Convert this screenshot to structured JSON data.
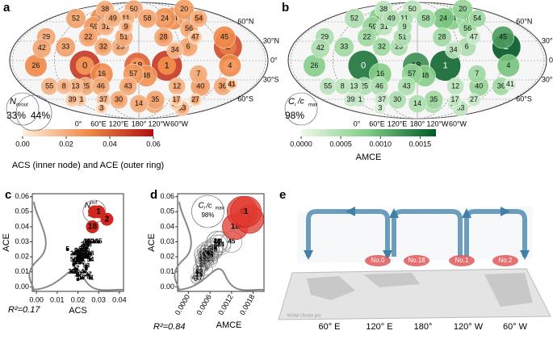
{
  "nodes": [
    {
      "id": 0,
      "lon": 103,
      "lat": -8,
      "acs": 0.028,
      "ace": 0.05,
      "amce": 0.0015
    },
    {
      "id": 1,
      "lon": -140,
      "lat": -8,
      "acs": 0.03,
      "ace": 0.05,
      "amce": 0.0016
    },
    {
      "id": 2,
      "lon": -50,
      "lat": 21,
      "acs": 0.034,
      "ace": 0.045,
      "amce": 0.0017
    },
    {
      "id": 3,
      "lon": 91,
      "lat": -74,
      "acs": 0.02,
      "ace": 0.005,
      "amce": 0.0002
    },
    {
      "id": 4,
      "lon": -50,
      "lat": -8,
      "acs": 0.025,
      "ace": 0.03,
      "amce": 0.0009
    },
    {
      "id": 5,
      "lon": -82,
      "lat": 65,
      "acs": 0.015,
      "ace": 0.025,
      "amce": 0.0006
    },
    {
      "id": 6,
      "lon": -108,
      "lat": 21,
      "acs": 0.022,
      "ace": 0.022,
      "amce": 0.0005
    },
    {
      "id": 7,
      "lon": -93,
      "lat": -21,
      "acs": 0.02,
      "ace": 0.02,
      "amce": 0.0006
    },
    {
      "id": 8,
      "lon": 62,
      "lat": -40,
      "acs": 0.018,
      "ace": 0.015,
      "amce": 0.0004
    },
    {
      "id": 9,
      "lon": 158,
      "lat": 52,
      "acs": 0.024,
      "ace": 0.012,
      "amce": 0.0005
    },
    {
      "id": 10,
      "lon": 105,
      "lat": 65,
      "acs": 0.026,
      "ace": 0.03,
      "amce": 0.0008
    },
    {
      "id": 11,
      "lon": 154,
      "lat": 65,
      "acs": 0.022,
      "ace": 0.018,
      "amce": 0.0005
    },
    {
      "id": 12,
      "lon": -120,
      "lat": -40,
      "acs": 0.02,
      "ace": 0.018,
      "amce": 0.0004
    },
    {
      "id": 13,
      "lon": 80,
      "lat": -40,
      "acs": 0.019,
      "ace": 0.016,
      "amce": 0.0004
    },
    {
      "id": 14,
      "lon": 180,
      "lat": -67,
      "acs": 0.021,
      "ace": 0.02,
      "amce": 0.0005
    },
    {
      "id": 15,
      "lon": -148,
      "lat": -67,
      "acs": 0.023,
      "ace": 0.022,
      "amce": 0.0005
    },
    {
      "id": 16,
      "lon": 126,
      "lat": -21,
      "acs": 0.025,
      "ace": 0.03,
      "amce": 0.0008
    },
    {
      "id": 17,
      "lon": -109,
      "lat": -61,
      "acs": 0.022,
      "ace": 0.006,
      "amce": 0.0003
    },
    {
      "id": 18,
      "lon": 178,
      "lat": -8,
      "acs": 0.027,
      "ace": 0.04,
      "amce": 0.0013
    },
    {
      "id": 19,
      "lon": -104,
      "lat": -67,
      "acs": 0.02,
      "ace": 0.008,
      "amce": 0.0003
    },
    {
      "id": 20,
      "lon": -54,
      "lat": 79,
      "acs": 0.022,
      "ace": 0.025,
      "amce": 0.0007
    },
    {
      "id": 21,
      "lon": 68,
      "lat": -61,
      "acs": 0.019,
      "ace": 0.01,
      "amce": 0.0003
    },
    {
      "id": 22,
      "lon": 102,
      "lat": 36,
      "acs": 0.024,
      "ace": 0.022,
      "amce": 0.0006
    },
    {
      "id": 23,
      "lon": 153,
      "lat": 21,
      "acs": 0.021,
      "ace": 0.02,
      "amce": 0.0005
    },
    {
      "id": 24,
      "lon": -128,
      "lat": 65,
      "acs": 0.023,
      "ace": 0.028,
      "amce": 0.0009
    },
    {
      "id": 25,
      "lon": 96,
      "lat": -40,
      "acs": 0.022,
      "ace": 0.02,
      "amce": 0.0005
    },
    {
      "id": 26,
      "lon": 33,
      "lat": -8,
      "acs": 0.028,
      "ace": 0.03,
      "amce": 0.0008
    },
    {
      "id": 27,
      "lon": -73,
      "lat": -61,
      "acs": 0.025,
      "ace": 0.008,
      "amce": 0.0003
    },
    {
      "id": 28,
      "lon": -142,
      "lat": 36,
      "acs": 0.026,
      "ace": 0.022,
      "amce": 0.0006
    },
    {
      "id": 29,
      "lon": 37,
      "lat": 36,
      "acs": 0.018,
      "ace": 0.022,
      "amce": 0.0005
    },
    {
      "id": 30,
      "lon": 142,
      "lat": -61,
      "acs": 0.024,
      "ace": 0.02,
      "amce": 0.0005
    },
    {
      "id": 31,
      "lon": 123,
      "lat": 52,
      "acs": 0.02,
      "ace": 0.018,
      "amce": 0.0004
    },
    {
      "id": 32,
      "lon": 128,
      "lat": 21,
      "acs": 0.025,
      "ace": 0.02,
      "amce": 0.0006
    },
    {
      "id": 33,
      "lon": 73,
      "lat": 21,
      "acs": 0.02,
      "ace": 0.024,
      "amce": 0.0006
    },
    {
      "id": 34,
      "lon": -128,
      "lat": 16,
      "acs": 0.021,
      "ace": 0.016,
      "amce": 0.0004
    },
    {
      "id": 35,
      "lon": -149,
      "lat": -61,
      "acs": 0.022,
      "ace": 0.022,
      "amce": 0.0006
    },
    {
      "id": 36,
      "lon": -48,
      "lat": -40,
      "acs": 0.023,
      "ace": 0.02,
      "amce": 0.0006
    },
    {
      "id": 37,
      "lon": 113,
      "lat": -61,
      "acs": 0.019,
      "ace": 0.012,
      "amce": 0.0003
    },
    {
      "id": 38,
      "lon": 86,
      "lat": 79,
      "acs": 0.021,
      "ace": 0.02,
      "amce": 0.0004
    },
    {
      "id": 39,
      "lon": 54,
      "lat": -61,
      "acs": 0.017,
      "ace": 0.01,
      "amce": 0.0003
    },
    {
      "id": 40,
      "lon": -83,
      "lat": -40,
      "acs": 0.024,
      "ace": 0.024,
      "amce": 0.0007
    },
    {
      "id": 41,
      "lon": -36,
      "lat": -37,
      "acs": 0.026,
      "ace": 0.006,
      "amce": 0.0002
    },
    {
      "id": 42,
      "lon": 39,
      "lat": 19,
      "acs": 0.02,
      "ace": 0.022,
      "amce": 0.0005
    },
    {
      "id": 43,
      "lon": 163,
      "lat": -40,
      "acs": 0.022,
      "ace": 0.02,
      "amce": 0.0005
    },
    {
      "id": 44,
      "lon": -111,
      "lat": 65,
      "acs": 0.024,
      "ace": 0.03,
      "amce": 0.0008
    },
    {
      "id": 45,
      "lon": -48,
      "lat": 36,
      "acs": 0.03,
      "ace": 0.03,
      "amce": 0.0012
    },
    {
      "id": 46,
      "lon": 120,
      "lat": -40,
      "acs": 0.021,
      "ace": 0.02,
      "amce": 0.0005
    },
    {
      "id": 47,
      "lon": -93,
      "lat": 36,
      "acs": 0.023,
      "ace": 0.01,
      "amce": 0.0003
    },
    {
      "id": 48,
      "lon": -169,
      "lat": -24,
      "acs": 0.025,
      "ace": 0.028,
      "amce": 0.0008
    },
    {
      "id": 49,
      "lon": 128,
      "lat": 65,
      "acs": 0.021,
      "ace": 0.018,
      "amce": 0.0005
    },
    {
      "id": 50,
      "lon": 166,
      "lat": 79,
      "acs": 0.02,
      "ace": 0.022,
      "amce": 0.0004
    },
    {
      "id": 51,
      "lon": 157,
      "lat": 36,
      "acs": 0.022,
      "ace": 0.02,
      "amce": 0.0005
    },
    {
      "id": 52,
      "lon": 54,
      "lat": 65,
      "acs": 0.02,
      "ace": 0.024,
      "amce": 0.0005
    },
    {
      "id": 53,
      "lon": -77,
      "lat": -74,
      "acs": 0.024,
      "ace": 0.014,
      "amce": 0.0004
    },
    {
      "id": 54,
      "lon": -60,
      "lat": 65,
      "acs": 0.026,
      "ace": 0.018,
      "amce": 0.0006
    },
    {
      "id": 55,
      "lon": 39,
      "lat": -40,
      "acs": 0.018,
      "ace": 0.018,
      "amce": 0.0004
    },
    {
      "id": 56,
      "lon": -96,
      "lat": 49,
      "acs": 0.023,
      "ace": 0.02,
      "amce": 0.0006
    },
    {
      "id": 57,
      "lon": 172,
      "lat": -21,
      "acs": 0.024,
      "ace": 0.026,
      "amce": 0.0007
    },
    {
      "id": 58,
      "lon": -163,
      "lat": 65,
      "acs": 0.022,
      "ace": 0.022,
      "amce": 0.0006
    },
    {
      "id": 59,
      "lon": 103,
      "lat": 52,
      "acs": 0.023,
      "ace": 0.026,
      "amce": 0.0007
    }
  ],
  "lat_ticks": [
    {
      "value": 60,
      "label": "60°N"
    },
    {
      "value": 30,
      "label": "30°N"
    },
    {
      "value": 0,
      "label": "0°"
    },
    {
      "value": -30,
      "label": "30°S"
    },
    {
      "value": -60,
      "label": "60°S"
    }
  ],
  "lon_ticks": [
    {
      "value": 0,
      "label": "0°"
    },
    {
      "value": 60,
      "label": "60°E"
    },
    {
      "value": 120,
      "label": "120°E"
    },
    {
      "value": 180,
      "label": "180°"
    },
    {
      "value": -120,
      "label": "120°W"
    },
    {
      "value": -60,
      "label": "60°W"
    }
  ],
  "chart_data": [
    {
      "type": "map",
      "panel": "a",
      "field": "ace",
      "inner_field": "acs",
      "colorbar": {
        "lim": [
          0,
          0.06
        ],
        "ticks": [
          {
            "value": 0,
            "label": "0.00"
          },
          {
            "value": 0.02,
            "label": "0.02"
          },
          {
            "value": 0.04,
            "label": "0.04"
          },
          {
            "value": 0.06,
            "label": "0.06"
          }
        ],
        "label": "ACS (inner node) and ACE (outer ring)",
        "colors": [
          "#fdf0dc",
          "#f08a4b",
          "#b0100f"
        ]
      },
      "note": {
        "symbol": "N",
        "sub": "in/out",
        "values": [
          "33%",
          "44%"
        ]
      }
    },
    {
      "type": "map",
      "panel": "b",
      "field": "amce",
      "colorbar": {
        "lim": [
          0,
          0.0017
        ],
        "ticks": [
          {
            "value": 0,
            "label": "0.0000"
          },
          {
            "value": 0.0005,
            "label": "0.0005"
          },
          {
            "value": 0.001,
            "label": "0.0010"
          },
          {
            "value": 0.0015,
            "label": "0.0015"
          }
        ],
        "label": "AMCE",
        "colors": [
          "#eef8ea",
          "#7fcb84",
          "#005a25"
        ]
      },
      "note": {
        "symbol": "C",
        "sub": "i",
        "mid": "/c",
        "sub2": "max",
        "values": [
          "98%"
        ]
      }
    },
    {
      "type": "scatter",
      "panel": "c",
      "x_field": "acs",
      "y_field": "ace",
      "xlabel": "ACS",
      "ylabel": "ACE",
      "xlim": [
        -0.002,
        0.042
      ],
      "xticks": [
        {
          "value": 0,
          "label": "0.00"
        },
        {
          "value": 0.01,
          "label": "0.01"
        },
        {
          "value": 0.02,
          "label": "0.02"
        },
        {
          "value": 0.03,
          "label": "0.03"
        },
        {
          "value": 0.04,
          "label": "0.04"
        }
      ],
      "ylim": [
        -0.003,
        0.062
      ],
      "yticks": [
        {
          "value": 0,
          "label": "0.00"
        },
        {
          "value": 0.01,
          "label": "0.01"
        },
        {
          "value": 0.02,
          "label": "0.02"
        },
        {
          "value": 0.03,
          "label": "0.03"
        },
        {
          "value": 0.04,
          "label": "0.04"
        },
        {
          "value": 0.05,
          "label": "0.05"
        },
        {
          "value": 0.06,
          "label": "0.06"
        }
      ],
      "annotation": "R²=0.17",
      "note": {
        "symbol": "N",
        "sup": "out",
        "values": [
          "44%"
        ]
      }
    },
    {
      "type": "scatter",
      "panel": "d",
      "x_field": "amce",
      "y_field": "ace",
      "xlabel": "AMCE",
      "ylabel": "ACE",
      "xlim": [
        -0.0003,
        0.0021
      ],
      "xticks": [
        {
          "value": 0,
          "label": "0.0000"
        },
        {
          "value": 0.0006,
          "label": "0.0006"
        },
        {
          "value": 0.0012,
          "label": "0.0012"
        },
        {
          "value": 0.0018,
          "label": "0.0018"
        }
      ],
      "ylim": [
        -0.003,
        0.062
      ],
      "yticks": [
        {
          "value": 0,
          "label": "0.00"
        },
        {
          "value": 0.01,
          "label": "0.01"
        },
        {
          "value": 0.02,
          "label": "0.02"
        },
        {
          "value": 0.03,
          "label": "0.03"
        },
        {
          "value": 0.04,
          "label": "0.04"
        },
        {
          "value": 0.05,
          "label": "0.05"
        },
        {
          "value": 0.06,
          "label": "0.06"
        }
      ],
      "annotation": "R²=0.84",
      "note": {
        "symbol": "C",
        "sub": "i",
        "mid": "/c",
        "sub2": "max",
        "values": [
          "98%"
        ]
      }
    }
  ],
  "diagram": {
    "panel": "e",
    "nodes": [
      "No.0",
      "No.18",
      "No.1",
      "No.2"
    ],
    "lon_labels": [
      "60° E",
      "120° E",
      "180°",
      "120° W",
      "60° W"
    ],
    "credit": "NOAA Climate.gov"
  }
}
